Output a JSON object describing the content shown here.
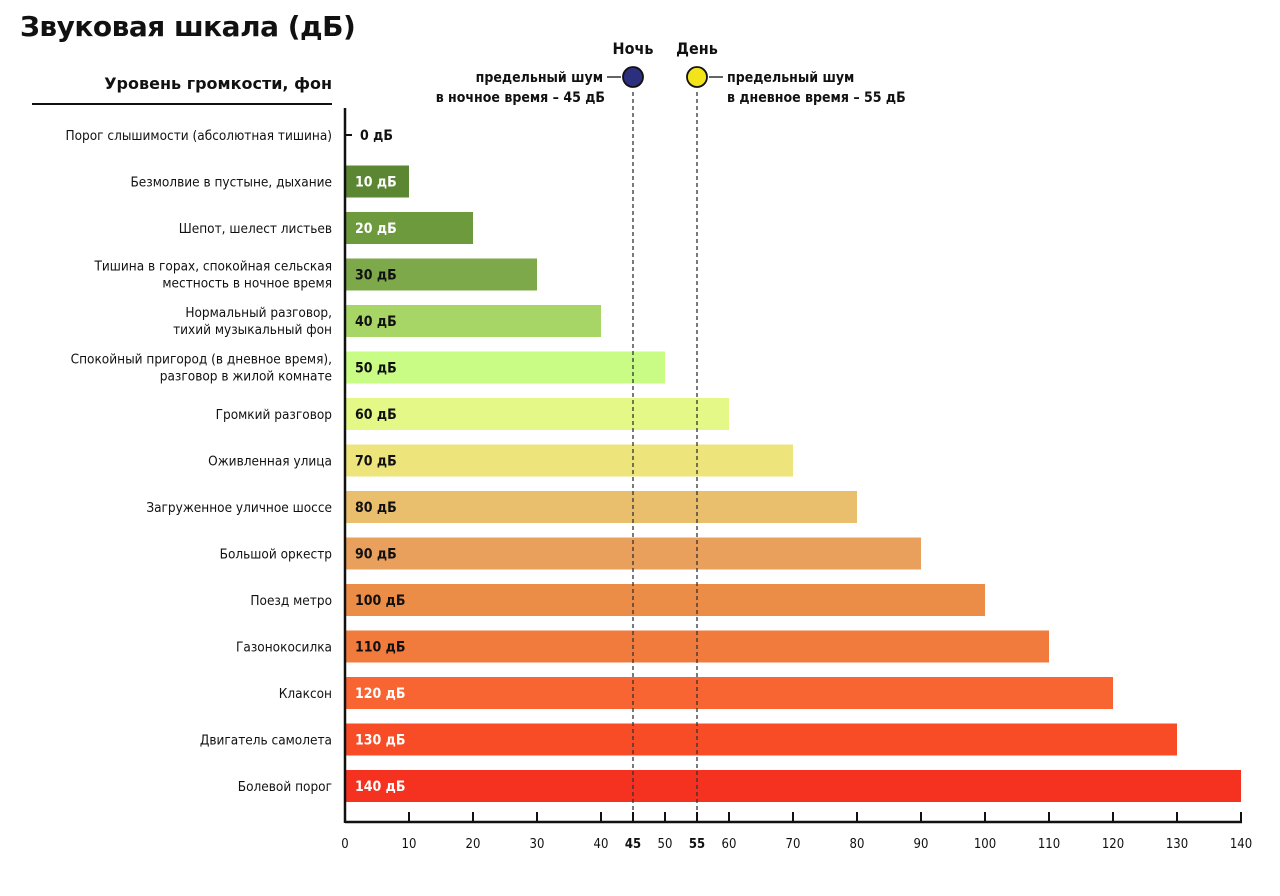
{
  "chart_data": {
    "type": "bar",
    "orientation": "horizontal",
    "title": "Звуковая шкала (дБ)",
    "ylabel": "Уровень громкости, фон",
    "xlim": [
      0,
      140
    ],
    "xticks": [
      0,
      10,
      20,
      30,
      40,
      45,
      50,
      55,
      60,
      70,
      80,
      90,
      100,
      110,
      120,
      130,
      140
    ],
    "unit": "дБ",
    "categories": [
      [
        "Порог слышимости (абсолютная тишина)"
      ],
      [
        "Безмолвие в пустыне, дыхание"
      ],
      [
        "Шепот, шелест листьев"
      ],
      [
        "Тишина в горах, спокойная сельская",
        "местность в ночное время"
      ],
      [
        "Нормальный разговор,",
        "тихий музыкальный фон"
      ],
      [
        "Спокойный пригород (в дневное время),",
        "разговор в жилой комнате"
      ],
      [
        "Громкий разговор"
      ],
      [
        "Оживленная улица"
      ],
      [
        "Загруженное уличное шоссе"
      ],
      [
        "Большой оркестр"
      ],
      [
        "Поезд метро"
      ],
      [
        "Газонокосилка"
      ],
      [
        "Клаксон"
      ],
      [
        "Двигатель самолета"
      ],
      [
        "Болевой порог"
      ]
    ],
    "values": [
      0,
      10,
      20,
      30,
      40,
      50,
      60,
      70,
      80,
      90,
      100,
      110,
      120,
      130,
      140
    ],
    "bar_labels": [
      "0 дБ",
      "10 дБ",
      "20 дБ",
      "30 дБ",
      "40 дБ",
      "50 дБ",
      "60 дБ",
      "70 дБ",
      "80 дБ",
      "90 дБ",
      "100 дБ",
      "110 дБ",
      "120 дБ",
      "130 дБ",
      "140 дБ"
    ],
    "colors": [
      "#111111",
      "#5b8632",
      "#6e9a3e",
      "#7ea94a",
      "#a7d666",
      "#c8fc85",
      "#e3f886",
      "#ede47c",
      "#e9bf6e",
      "#e9a05c",
      "#ec8d47",
      "#f17b3d",
      "#f86432",
      "#f74c25",
      "#f5311f"
    ],
    "label_colors": [
      "#111111",
      "#ffffff",
      "#ffffff",
      "#111111",
      "#111111",
      "#111111",
      "#111111",
      "#111111",
      "#111111",
      "#111111",
      "#111111",
      "#111111",
      "#ffffff",
      "#ffffff",
      "#ffffff"
    ],
    "reference_lines": [
      {
        "name": "Ночь",
        "value": 45,
        "color": "#2b2f7e",
        "note": [
          "предельный шум",
          "в ночное время – 45 дБ"
        ],
        "note_side": "left"
      },
      {
        "name": "День",
        "value": 55,
        "color": "#f3e31a",
        "note": [
          "предельный шум",
          "в дневное время – 55 дБ"
        ],
        "note_side": "right"
      }
    ]
  }
}
